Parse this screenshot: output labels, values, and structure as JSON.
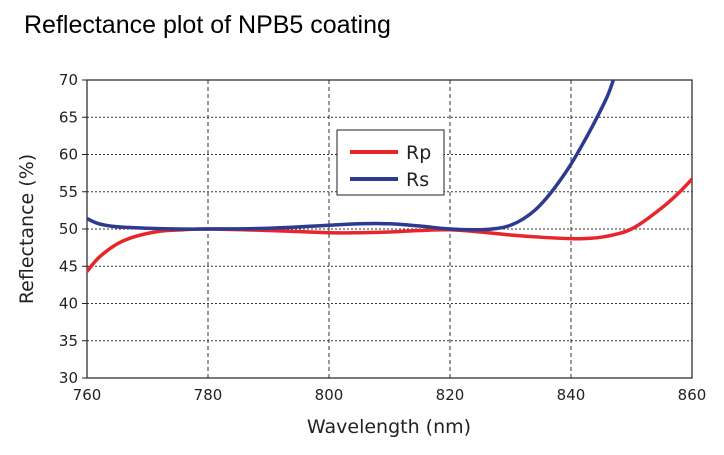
{
  "chart_data": {
    "type": "line",
    "title": "Reflectance plot of NPB5 coating",
    "xlabel": "Wavelength (nm)",
    "ylabel": "Reflectance (%)",
    "xlim": [
      760,
      860
    ],
    "ylim": [
      30,
      70
    ],
    "xticks": [
      "760",
      "780",
      "800",
      "820",
      "840",
      "860"
    ],
    "yticks": [
      "30",
      "35",
      "40",
      "45",
      "50",
      "55",
      "60",
      "65",
      "70"
    ],
    "grid": true,
    "legend_position": "top-center",
    "series": [
      {
        "name": "Rp",
        "color": "#e8252a",
        "x": [
          760,
          762,
          765,
          768,
          772,
          776,
          780,
          790,
          800,
          805,
          810,
          815,
          820,
          825,
          830,
          835,
          840,
          842,
          845,
          848,
          850,
          852,
          854,
          856,
          858,
          860
        ],
        "y": [
          44.3,
          46.2,
          48.0,
          49.0,
          49.7,
          49.9,
          50.0,
          49.8,
          49.5,
          49.5,
          49.6,
          49.8,
          49.9,
          49.6,
          49.2,
          48.9,
          48.7,
          48.7,
          48.9,
          49.4,
          50.0,
          51.0,
          52.2,
          53.5,
          55.0,
          56.7
        ]
      },
      {
        "name": "Rs",
        "color": "#2c3a8f",
        "x": [
          760,
          762,
          765,
          770,
          775,
          780,
          790,
          800,
          805,
          810,
          815,
          820,
          825,
          828,
          830,
          832,
          834,
          836,
          838,
          840,
          842,
          844,
          846,
          847
        ],
        "y": [
          51.4,
          50.7,
          50.3,
          50.1,
          50.0,
          50.0,
          50.1,
          50.5,
          50.7,
          50.7,
          50.4,
          50.0,
          49.9,
          50.1,
          50.5,
          51.3,
          52.5,
          54.2,
          56.3,
          58.7,
          61.5,
          64.5,
          67.8,
          70.0
        ]
      }
    ]
  }
}
